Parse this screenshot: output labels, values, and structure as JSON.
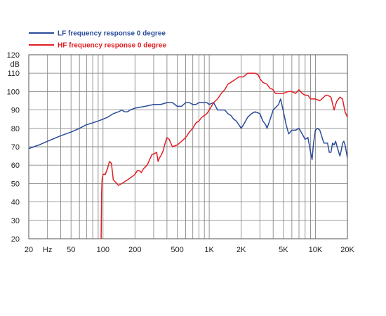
{
  "chart_data": {
    "type": "line",
    "title": "",
    "xlabel": "",
    "ylabel": "",
    "y_unit_label": "dB",
    "x_unit_label": "Hz",
    "x_scale": "log",
    "xlim": [
      20,
      20000
    ],
    "ylim": [
      20,
      120
    ],
    "grid": true,
    "legend_position": "top-left",
    "y_ticks": [
      20,
      30,
      40,
      50,
      60,
      70,
      80,
      90,
      100,
      110,
      120
    ],
    "x_ticks": [
      {
        "value": 20,
        "label": "20"
      },
      {
        "value": 50,
        "label": "50"
      },
      {
        "value": 100,
        "label": "100"
      },
      {
        "value": 200,
        "label": "200"
      },
      {
        "value": 500,
        "label": "500"
      },
      {
        "value": 1000,
        "label": "1K"
      },
      {
        "value": 2000,
        "label": "2K"
      },
      {
        "value": 5000,
        "label": "5K"
      },
      {
        "value": 10000,
        "label": "10K"
      },
      {
        "value": 20000,
        "label": "20K"
      }
    ],
    "series": [
      {
        "name": "LF frequency response 0 degree",
        "color": "#2b4c9b",
        "points": [
          [
            20,
            69
          ],
          [
            25,
            71
          ],
          [
            30,
            73
          ],
          [
            40,
            76
          ],
          [
            50,
            78
          ],
          [
            60,
            80
          ],
          [
            70,
            82
          ],
          [
            80,
            83
          ],
          [
            90,
            84
          ],
          [
            100,
            85
          ],
          [
            110,
            86
          ],
          [
            125,
            88
          ],
          [
            140,
            89
          ],
          [
            150,
            90
          ],
          [
            160,
            89
          ],
          [
            170,
            89
          ],
          [
            180,
            90
          ],
          [
            200,
            91
          ],
          [
            250,
            92
          ],
          [
            300,
            93
          ],
          [
            350,
            93
          ],
          [
            400,
            94
          ],
          [
            450,
            94
          ],
          [
            500,
            92
          ],
          [
            550,
            92
          ],
          [
            600,
            94
          ],
          [
            650,
            94
          ],
          [
            700,
            93
          ],
          [
            750,
            93
          ],
          [
            800,
            94
          ],
          [
            850,
            94
          ],
          [
            900,
            94
          ],
          [
            950,
            94
          ],
          [
            1000,
            93
          ],
          [
            1100,
            94
          ],
          [
            1200,
            90
          ],
          [
            1300,
            90
          ],
          [
            1400,
            90
          ],
          [
            1500,
            88
          ],
          [
            1600,
            87
          ],
          [
            1700,
            85
          ],
          [
            1800,
            84
          ],
          [
            1900,
            82
          ],
          [
            2000,
            80
          ],
          [
            2100,
            82
          ],
          [
            2200,
            84
          ],
          [
            2300,
            86
          ],
          [
            2500,
            88
          ],
          [
            2700,
            89
          ],
          [
            3000,
            88
          ],
          [
            3200,
            84
          ],
          [
            3400,
            82
          ],
          [
            3500,
            80
          ],
          [
            3700,
            84
          ],
          [
            4000,
            90
          ],
          [
            4500,
            93
          ],
          [
            4700,
            96
          ],
          [
            5000,
            89
          ],
          [
            5300,
            82
          ],
          [
            5600,
            77
          ],
          [
            6000,
            79
          ],
          [
            6500,
            79
          ],
          [
            7000,
            80
          ],
          [
            7500,
            77
          ],
          [
            8000,
            74
          ],
          [
            8500,
            75
          ],
          [
            9000,
            67
          ],
          [
            9300,
            63
          ],
          [
            9600,
            72
          ],
          [
            10000,
            79
          ],
          [
            10500,
            80
          ],
          [
            11000,
            79
          ],
          [
            12000,
            72
          ],
          [
            13000,
            72
          ],
          [
            13500,
            67
          ],
          [
            14000,
            67
          ],
          [
            14500,
            72
          ],
          [
            15000,
            71
          ],
          [
            15500,
            73
          ],
          [
            16000,
            70
          ],
          [
            17000,
            65
          ],
          [
            17500,
            68
          ],
          [
            18000,
            72
          ],
          [
            18500,
            73
          ],
          [
            19000,
            71
          ],
          [
            20000,
            64
          ]
        ]
      },
      {
        "name": "HF frequency response 0 degree",
        "color": "#e31e24",
        "points": [
          [
            96,
            20
          ],
          [
            97,
            45
          ],
          [
            98,
            52
          ],
          [
            100,
            55
          ],
          [
            105,
            55
          ],
          [
            110,
            58
          ],
          [
            115,
            62
          ],
          [
            120,
            61
          ],
          [
            125,
            52
          ],
          [
            130,
            51
          ],
          [
            135,
            50
          ],
          [
            140,
            49
          ],
          [
            150,
            50
          ],
          [
            160,
            51
          ],
          [
            170,
            52
          ],
          [
            180,
            53
          ],
          [
            190,
            54
          ],
          [
            200,
            55
          ],
          [
            210,
            57
          ],
          [
            220,
            57
          ],
          [
            230,
            56
          ],
          [
            240,
            58
          ],
          [
            250,
            59
          ],
          [
            260,
            60
          ],
          [
            270,
            62
          ],
          [
            290,
            66
          ],
          [
            300,
            66
          ],
          [
            320,
            67
          ],
          [
            330,
            62
          ],
          [
            340,
            64
          ],
          [
            350,
            65
          ],
          [
            370,
            68
          ],
          [
            380,
            71
          ],
          [
            390,
            73
          ],
          [
            400,
            75
          ],
          [
            420,
            74
          ],
          [
            450,
            70
          ],
          [
            500,
            71
          ],
          [
            550,
            73
          ],
          [
            600,
            75
          ],
          [
            650,
            78
          ],
          [
            700,
            80
          ],
          [
            750,
            83
          ],
          [
            800,
            84
          ],
          [
            850,
            86
          ],
          [
            900,
            87
          ],
          [
            950,
            88
          ],
          [
            1000,
            90
          ],
          [
            1050,
            92
          ],
          [
            1100,
            94
          ],
          [
            1200,
            96
          ],
          [
            1300,
            99
          ],
          [
            1400,
            101
          ],
          [
            1500,
            104
          ],
          [
            1600,
            105
          ],
          [
            1700,
            106
          ],
          [
            1800,
            107
          ],
          [
            1900,
            108
          ],
          [
            2000,
            108
          ],
          [
            2100,
            108
          ],
          [
            2200,
            109
          ],
          [
            2300,
            110
          ],
          [
            2500,
            110
          ],
          [
            2700,
            110
          ],
          [
            2900,
            109
          ],
          [
            3000,
            107
          ],
          [
            3200,
            105
          ],
          [
            3500,
            104
          ],
          [
            3700,
            102
          ],
          [
            4000,
            101
          ],
          [
            4200,
            99
          ],
          [
            4500,
            99
          ],
          [
            5000,
            99
          ],
          [
            5500,
            100
          ],
          [
            6000,
            100
          ],
          [
            6500,
            99
          ],
          [
            7000,
            101
          ],
          [
            7500,
            99
          ],
          [
            8000,
            98
          ],
          [
            8500,
            98
          ],
          [
            9000,
            96
          ],
          [
            10000,
            96
          ],
          [
            11000,
            95
          ],
          [
            12000,
            97
          ],
          [
            12500,
            98
          ],
          [
            13000,
            98
          ],
          [
            14000,
            97
          ],
          [
            15000,
            90
          ],
          [
            15500,
            93
          ],
          [
            16000,
            95
          ],
          [
            17000,
            97
          ],
          [
            18000,
            96
          ],
          [
            19000,
            89
          ],
          [
            20000,
            86
          ]
        ]
      }
    ]
  }
}
